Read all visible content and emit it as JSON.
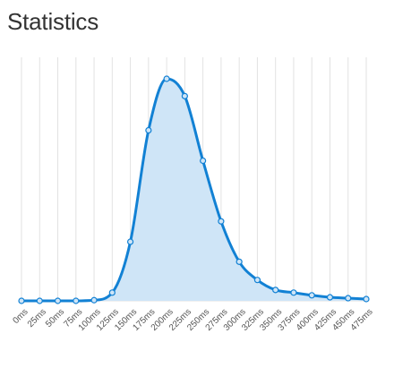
{
  "page": {
    "title": "Statistics"
  },
  "colors": {
    "line": "#1281d4",
    "area": "#cfe5f7",
    "point_fill": "#cfe5f7",
    "grid": "#e2e2e2",
    "tick_text": "#555555"
  },
  "chart_data": {
    "type": "area",
    "title": "",
    "xlabel": "",
    "ylabel": "",
    "grid": true,
    "categories": [
      "0ms",
      "25ms",
      "50ms",
      "75ms",
      "100ms",
      "125ms",
      "150ms",
      "175ms",
      "200ms",
      "225ms",
      "250ms",
      "275ms",
      "300ms",
      "325ms",
      "350ms",
      "375ms",
      "400ms",
      "425ms",
      "450ms",
      "475ms"
    ],
    "x": [
      0,
      25,
      50,
      75,
      100,
      125,
      150,
      175,
      200,
      225,
      250,
      275,
      300,
      325,
      350,
      375,
      400,
      425,
      450,
      475
    ],
    "values": [
      0,
      0,
      0,
      0,
      0.3,
      3.7,
      26.6,
      76.8,
      100,
      92.2,
      63.1,
      35.8,
      17.6,
      9.4,
      4.9,
      3.7,
      2.5,
      1.6,
      1.2,
      0.8
    ],
    "ylim": [
      0,
      100
    ],
    "smooth": true
  }
}
